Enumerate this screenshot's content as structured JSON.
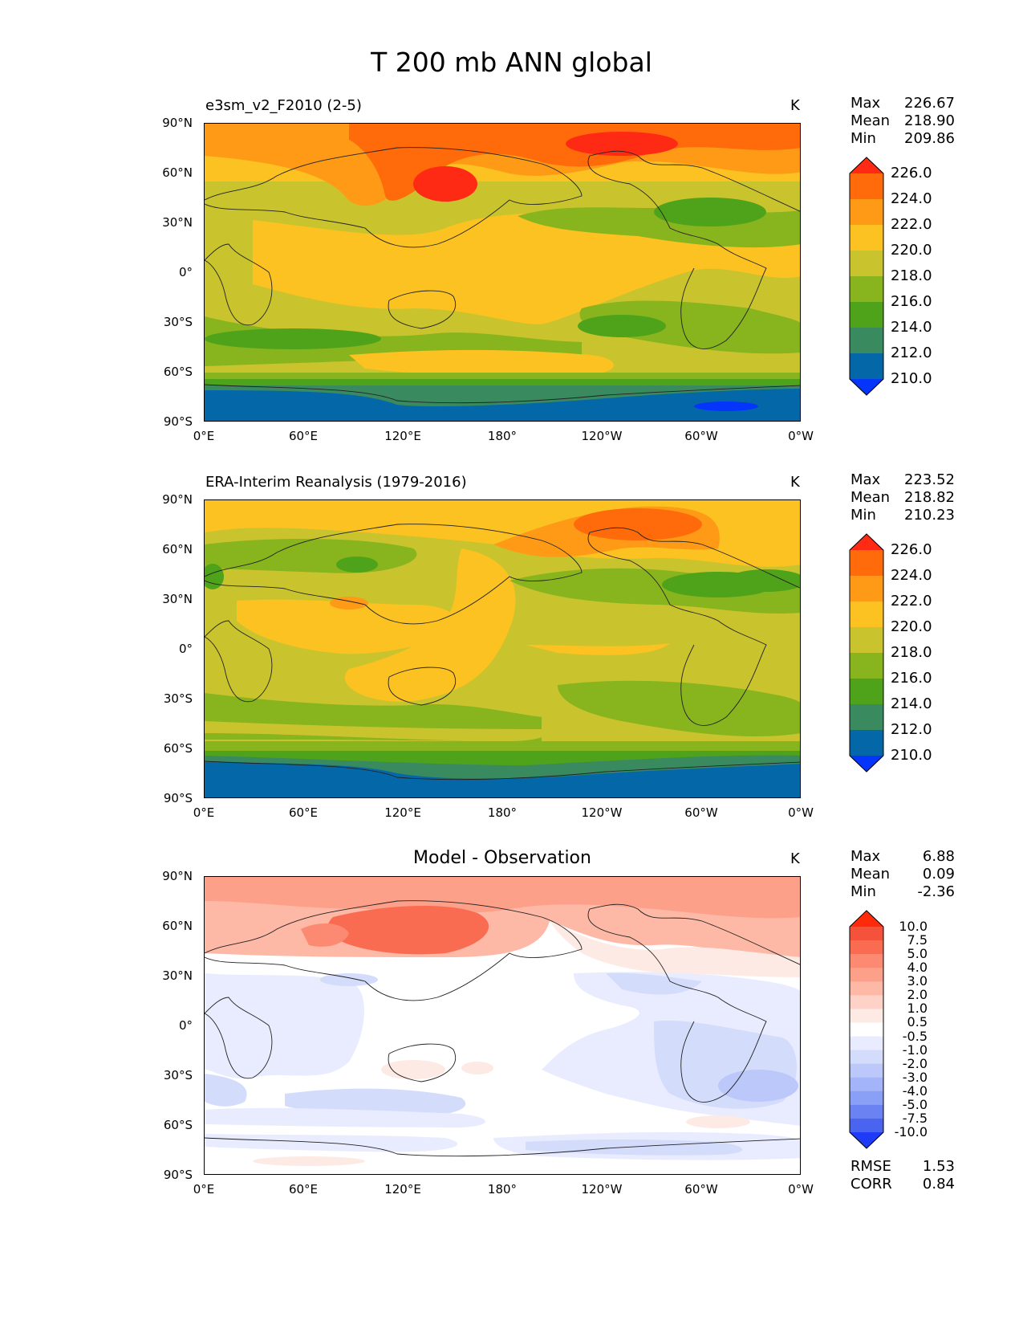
{
  "title": "T 200 mb ANN global",
  "units": "K",
  "x_ticks": [
    "0°E",
    "60°E",
    "120°E",
    "180°",
    "120°W",
    "60°W",
    "0°W"
  ],
  "y_ticks": [
    "90°N",
    "60°N",
    "30°N",
    "0°",
    "30°S",
    "60°S",
    "90°S"
  ],
  "panels": [
    {
      "title": "e3sm_v2_F2010 (2-5)",
      "stats": {
        "max_label": "Max",
        "max": "226.67",
        "mean_label": "Mean",
        "mean": "218.90",
        "min_label": "Min",
        "min": "209.86"
      },
      "colorbar": {
        "labels": [
          "226.0",
          "224.0",
          "222.0",
          "220.0",
          "218.0",
          "216.0",
          "214.0",
          "212.0",
          "210.0"
        ],
        "colors": [
          "#ff2a14",
          "#ff6a0a",
          "#fe9a16",
          "#fbc221",
          "#c9c42e",
          "#88b41e",
          "#4ea31a",
          "#3a8a60",
          "#0468a8",
          "#0535fa"
        ]
      }
    },
    {
      "title": "ERA-Interim Reanalysis (1979-2016)",
      "stats": {
        "max_label": "Max",
        "max": "223.52",
        "mean_label": "Mean",
        "mean": "218.82",
        "min_label": "Min",
        "min": "210.23"
      },
      "colorbar": {
        "labels": [
          "226.0",
          "224.0",
          "222.0",
          "220.0",
          "218.0",
          "216.0",
          "214.0",
          "212.0",
          "210.0"
        ],
        "colors": [
          "#ff2a14",
          "#ff6a0a",
          "#fe9a16",
          "#fbc221",
          "#c9c42e",
          "#88b41e",
          "#4ea31a",
          "#3a8a60",
          "#0468a8",
          "#0535fa"
        ]
      }
    },
    {
      "title": "Model - Observation",
      "stats": {
        "max_label": "Max",
        "max": "6.88",
        "mean_label": "Mean",
        "mean": "0.09",
        "min_label": "Min",
        "min": "-2.36"
      },
      "colorbar": {
        "labels": [
          "10.0",
          "7.5",
          "5.0",
          "4.0",
          "3.0",
          "2.0",
          "1.0",
          "0.5",
          "-0.5",
          "-1.0",
          "-2.0",
          "-3.0",
          "-4.0",
          "-5.0",
          "-7.5",
          "-10.0"
        ],
        "colors": [
          "#ff2a0a",
          "#f4523a",
          "#fa6c52",
          "#fc8a72",
          "#fda08a",
          "#feb8a6",
          "#fed2c6",
          "#feeae4",
          "#ffffff",
          "#e8ecfe",
          "#d4dcfc",
          "#bcc8fa",
          "#a4b4f8",
          "#8aa0f6",
          "#6a82f2",
          "#4a64f0",
          "#1e3cf8"
        ]
      },
      "extra_stats": {
        "rmse_label": "RMSE",
        "rmse": "1.53",
        "corr_label": "CORR",
        "corr": "0.84"
      }
    }
  ]
}
